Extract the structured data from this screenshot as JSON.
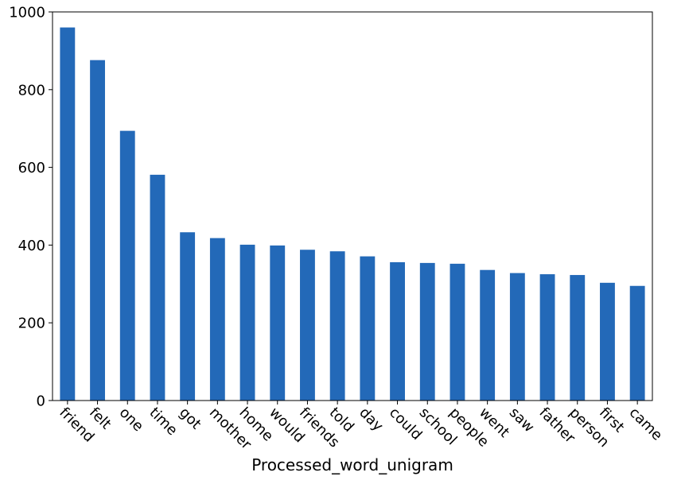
{
  "chart_data": {
    "type": "bar",
    "title": "",
    "xlabel": "Processed_word_unigram",
    "ylabel": "",
    "ylim": [
      0,
      1000
    ],
    "yticks": [
      0,
      200,
      400,
      600,
      800,
      1000
    ],
    "grid": false,
    "bar_color": "#2369b8",
    "categories": [
      "friend",
      "felt",
      "one",
      "time",
      "got",
      "mother",
      "home",
      "would",
      "friends",
      "told",
      "day",
      "could",
      "school",
      "people",
      "went",
      "saw",
      "father",
      "person",
      "first",
      "came"
    ],
    "values": [
      960,
      876,
      694,
      581,
      433,
      418,
      401,
      399,
      388,
      384,
      371,
      356,
      354,
      352,
      336,
      328,
      325,
      323,
      303,
      295
    ]
  }
}
